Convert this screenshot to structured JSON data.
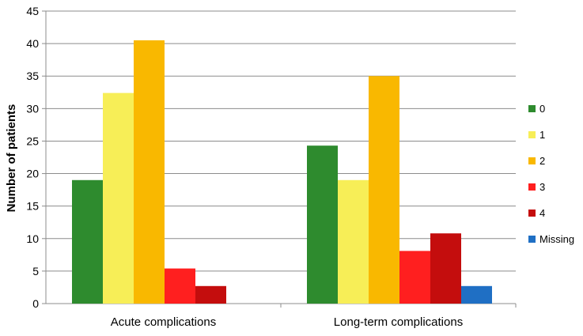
{
  "chart_data": {
    "type": "bar",
    "title": "",
    "xlabel": "",
    "ylabel": "Number of patients",
    "ylim": [
      0,
      45
    ],
    "yticks": [
      0,
      5,
      10,
      15,
      20,
      25,
      30,
      35,
      40,
      45
    ],
    "grid": true,
    "legend_position": "right",
    "categories": [
      "Acute complications",
      "Long-term complications"
    ],
    "series": [
      {
        "name": "0",
        "color": "#2e8b2e",
        "values": [
          19,
          24.3
        ]
      },
      {
        "name": "1",
        "color": "#f7ee57",
        "values": [
          32.4,
          19
        ]
      },
      {
        "name": "2",
        "color": "#f9b800",
        "values": [
          40.5,
          35
        ]
      },
      {
        "name": "3",
        "color": "#ff1f1f",
        "values": [
          5.4,
          8.1
        ]
      },
      {
        "name": "4",
        "color": "#c40d0d",
        "values": [
          2.7,
          10.8
        ]
      },
      {
        "name": "Missing",
        "color": "#1f6fc4",
        "values": [
          0,
          2.7
        ]
      }
    ]
  }
}
